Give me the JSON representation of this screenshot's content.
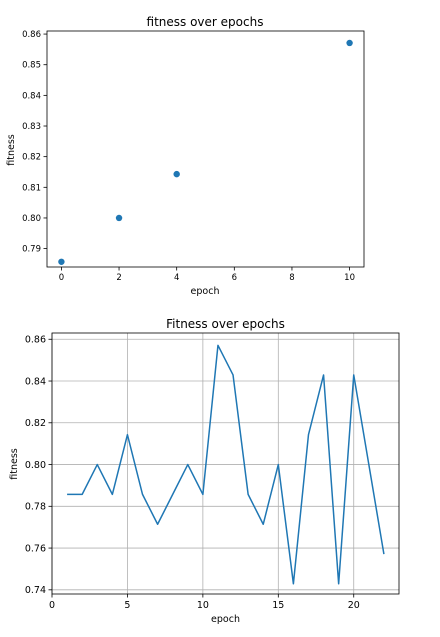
{
  "chart_data": [
    {
      "type": "scatter",
      "title": "fitness over epochs",
      "xlabel": "epoch",
      "ylabel": "fitness",
      "xlim": [
        -0.5,
        10.5
      ],
      "ylim": [
        0.784,
        0.861
      ],
      "xticks": [
        0,
        2,
        4,
        6,
        8,
        10
      ],
      "yticks": [
        0.79,
        0.8,
        0.81,
        0.82,
        0.83,
        0.84,
        0.85,
        0.86
      ],
      "grid": false,
      "color": "#1f77b4",
      "series": [
        {
          "x": [
            0,
            2,
            4,
            10
          ],
          "y": [
            0.7857,
            0.8,
            0.8143,
            0.8571
          ]
        }
      ]
    },
    {
      "type": "line",
      "title": "Fitness over epochs",
      "xlabel": "epoch",
      "ylabel": "fitness",
      "xlim": [
        0,
        23
      ],
      "ylim": [
        0.738,
        0.863
      ],
      "xticks": [
        0,
        5,
        10,
        15,
        20
      ],
      "yticks": [
        0.74,
        0.76,
        0.78,
        0.8,
        0.82,
        0.84,
        0.86
      ],
      "grid": true,
      "color": "#1f77b4",
      "series": [
        {
          "x": [
            1,
            2,
            3,
            4,
            5,
            6,
            7,
            8,
            9,
            10,
            11,
            12,
            13,
            14,
            15,
            16,
            17,
            18,
            19,
            20,
            21,
            22
          ],
          "y": [
            0.7857,
            0.7857,
            0.8,
            0.7857,
            0.8143,
            0.7857,
            0.7714,
            0.7857,
            0.8,
            0.7857,
            0.8571,
            0.8429,
            0.7857,
            0.7714,
            0.8,
            0.7429,
            0.8143,
            0.8429,
            0.7429,
            0.8429,
            0.8,
            0.7571
          ]
        }
      ]
    }
  ]
}
